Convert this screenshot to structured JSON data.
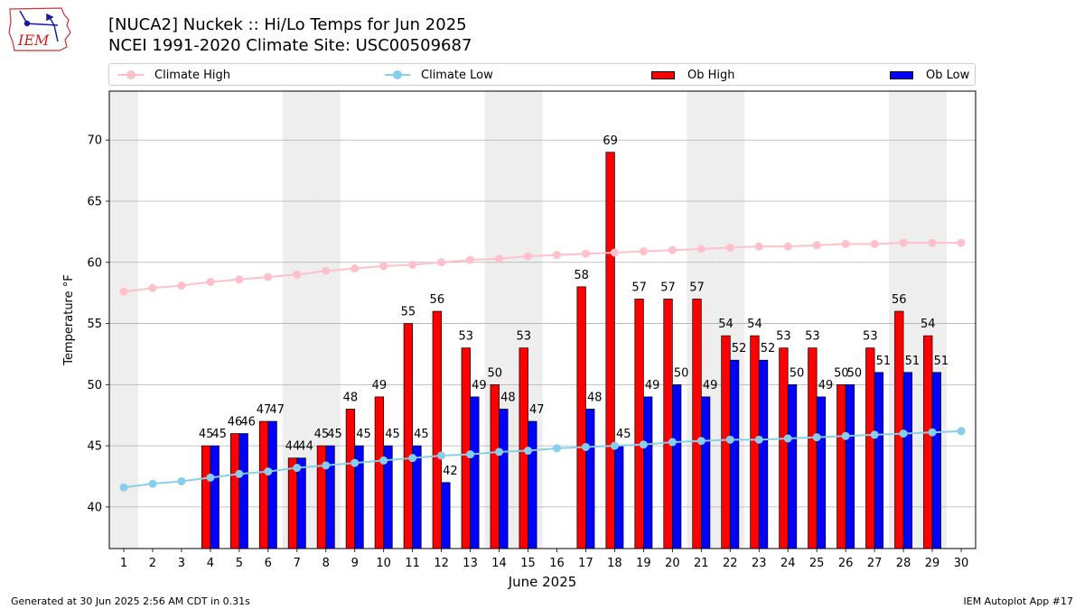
{
  "logo": {
    "text": "IEM",
    "icon": "iowa-state-outline-weather-station-icon"
  },
  "header": {
    "title": "[NUCA2] Nuckek :: Hi/Lo Temps for Jun 2025",
    "subtitle": "NCEI 1991-2020 Climate Site: USC00509687"
  },
  "legend": {
    "climate_high": "Climate High",
    "climate_low": "Climate Low",
    "ob_high": "Ob High",
    "ob_low": "Ob Low"
  },
  "colors": {
    "climate_high": "#ffc0cb",
    "climate_low": "#87ceeb",
    "ob_high": "#ff0000",
    "ob_low": "#0000ff",
    "weekend_shade": "#eeeeee",
    "grid": "#b0b0b0"
  },
  "chart_data": {
    "type": "bar",
    "title": "[NUCA2] Nuckek :: Hi/Lo Temps for Jun 2025",
    "xlabel": "June 2025",
    "ylabel": "Temperature °F",
    "xlim": [
      0.5,
      30.5
    ],
    "ylim": [
      36.6,
      74.0
    ],
    "yticks": [
      40,
      45,
      50,
      55,
      60,
      65,
      70
    ],
    "grid": "horizontal",
    "legend_position": "top",
    "categories": [
      1,
      2,
      3,
      4,
      5,
      6,
      7,
      8,
      9,
      10,
      11,
      12,
      13,
      14,
      15,
      16,
      17,
      18,
      19,
      20,
      21,
      22,
      23,
      24,
      25,
      26,
      27,
      28,
      29,
      30
    ],
    "shaded_days": [
      1,
      7,
      8,
      14,
      15,
      21,
      22,
      28,
      29
    ],
    "series": [
      {
        "name": "Ob High",
        "kind": "bar",
        "values": [
          null,
          null,
          null,
          45,
          46,
          47,
          44,
          45,
          48,
          49,
          55,
          56,
          53,
          50,
          53,
          null,
          58,
          69,
          57,
          57,
          57,
          54,
          54,
          53,
          53,
          50,
          53,
          56,
          54,
          null
        ]
      },
      {
        "name": "Ob Low",
        "kind": "bar",
        "values": [
          null,
          null,
          null,
          45,
          46,
          47,
          44,
          45,
          45,
          45,
          45,
          42,
          49,
          48,
          47,
          null,
          48,
          45,
          49,
          50,
          49,
          52,
          52,
          50,
          49,
          50,
          51,
          51,
          51,
          null
        ]
      },
      {
        "name": "Climate High",
        "kind": "line",
        "values": [
          57.6,
          57.9,
          58.1,
          58.4,
          58.6,
          58.8,
          59.0,
          59.3,
          59.5,
          59.7,
          59.8,
          60.0,
          60.2,
          60.3,
          60.5,
          60.6,
          60.7,
          60.8,
          60.9,
          61.0,
          61.1,
          61.2,
          61.3,
          61.3,
          61.4,
          61.5,
          61.5,
          61.6,
          61.6,
          61.6
        ]
      },
      {
        "name": "Climate Low",
        "kind": "line",
        "values": [
          41.6,
          41.9,
          42.1,
          42.4,
          42.7,
          42.9,
          43.2,
          43.4,
          43.6,
          43.8,
          44.0,
          44.2,
          44.3,
          44.5,
          44.6,
          44.8,
          44.9,
          45.0,
          45.1,
          45.3,
          45.4,
          45.5,
          45.5,
          45.6,
          45.7,
          45.8,
          45.9,
          46.0,
          46.1,
          46.2
        ]
      }
    ]
  },
  "footer": {
    "left": "Generated at 30 Jun 2025 2:56 AM CDT in 0.31s",
    "right": "IEM Autoplot App #17"
  }
}
